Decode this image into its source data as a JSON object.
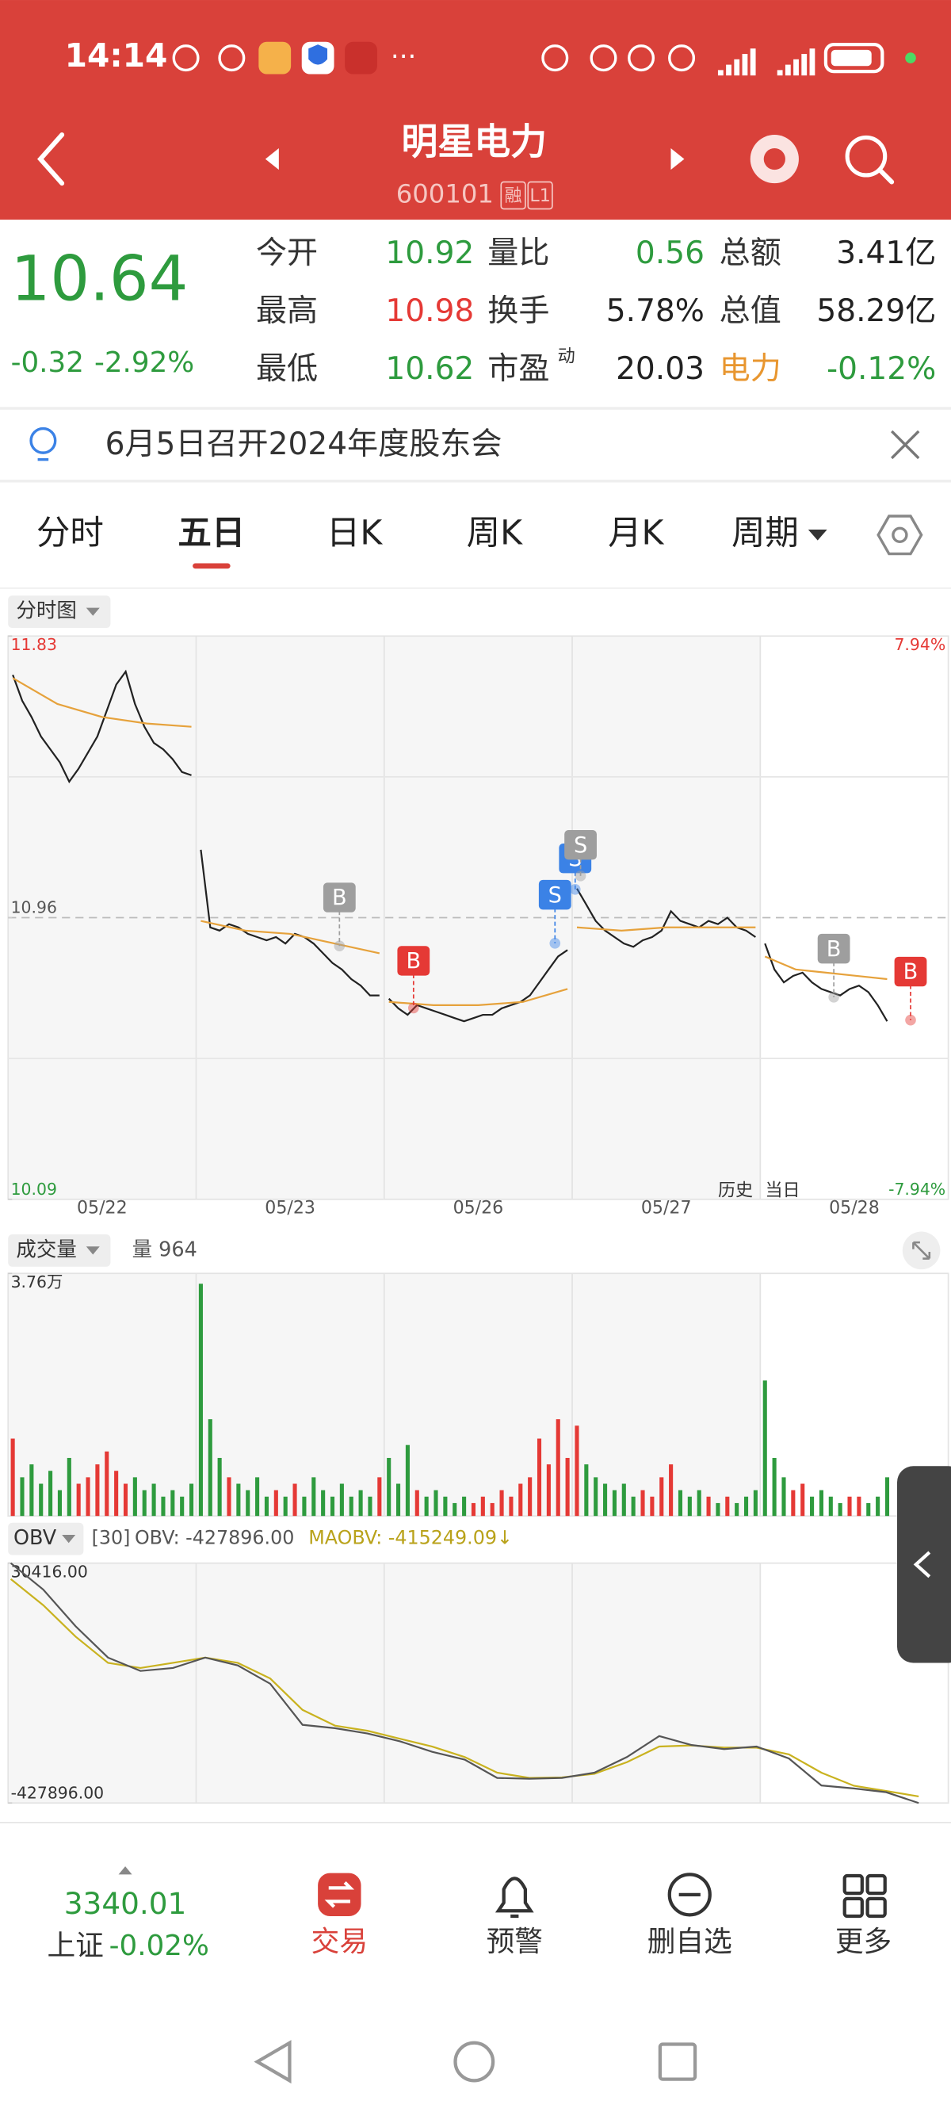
{
  "status_bar": {
    "time": "14:14",
    "more": "···"
  },
  "header": {
    "title": "明星电力",
    "code": "600101",
    "badges": [
      "融",
      "L1"
    ]
  },
  "quote": {
    "price": "10.64",
    "change": "-0.32",
    "change_pct": "-2.92%",
    "rows": [
      [
        {
          "label": "今开",
          "value": "10.92",
          "color": "#2e9b3e"
        },
        {
          "label": "量比",
          "value": "0.56",
          "color": "#2e9b3e"
        },
        {
          "label": "总额",
          "value": "3.41亿",
          "color": "#222222"
        }
      ],
      [
        {
          "label": "最高",
          "value": "10.98",
          "color": "#e53935"
        },
        {
          "label": "换手",
          "value": "5.78%",
          "color": "#222222"
        },
        {
          "label": "总值",
          "value": "58.29亿",
          "color": "#222222"
        }
      ],
      [
        {
          "label": "最低",
          "value": "10.62",
          "color": "#2e9b3e"
        },
        {
          "label": "市盈",
          "sup": "动",
          "value": "20.03",
          "color": "#222222"
        },
        {
          "label": "电力",
          "label_color": "#e8962f",
          "value": "-0.12%",
          "color": "#2e9b3e"
        }
      ]
    ]
  },
  "notice": "6月5日召开2024年度股东会",
  "tabs": [
    "分时",
    "五日",
    "日K",
    "周K",
    "月K",
    "周期"
  ],
  "active_tab": 1,
  "chart_data": {
    "type": "intraday",
    "label": "分时图",
    "categories": [
      "05/22",
      "05/23",
      "05/26",
      "05/27",
      "05/28"
    ],
    "history_label": "历史",
    "today_label": "当日",
    "ylim": [
      10.09,
      11.83
    ],
    "yticks": [
      11.83,
      10.96,
      10.09
    ],
    "prev_close": 10.96,
    "pct_labels": [
      "7.94%",
      "-7.94%"
    ],
    "price_color": "#222222",
    "avg_color": "#e6a23c",
    "up_color": "#e53935",
    "down_color": "#2e9b3e",
    "price": [
      [
        11.71,
        11.63,
        11.58,
        11.52,
        11.48,
        11.44,
        11.38,
        11.42,
        11.47,
        11.52,
        11.6,
        11.68,
        11.72,
        11.62,
        11.55,
        11.5,
        11.48,
        11.45,
        11.41,
        11.4
      ],
      [
        11.17,
        10.93,
        10.92,
        10.94,
        10.93,
        10.91,
        10.9,
        10.89,
        10.9,
        10.88,
        10.91,
        10.9,
        10.88,
        10.85,
        10.82,
        10.8,
        10.77,
        10.75,
        10.72,
        10.72
      ],
      [
        10.71,
        10.68,
        10.66,
        10.69,
        10.68,
        10.67,
        10.66,
        10.65,
        10.64,
        10.65,
        10.66,
        10.66,
        10.68,
        10.69,
        10.7,
        10.72,
        10.76,
        10.8,
        10.84,
        10.86
      ],
      [
        11.05,
        11.0,
        10.95,
        10.92,
        10.9,
        10.88,
        10.87,
        10.89,
        10.9,
        10.92,
        10.98,
        10.95,
        10.94,
        10.93,
        10.95,
        10.94,
        10.96,
        10.93,
        10.92,
        10.9
      ],
      [
        10.88,
        10.8,
        10.76,
        10.78,
        10.79,
        10.76,
        10.74,
        10.73,
        10.72,
        10.74,
        10.75,
        10.73,
        10.69,
        10.64
      ]
    ],
    "avg": [
      [
        11.7,
        11.62,
        11.58,
        11.56,
        11.55
      ],
      [
        10.95,
        10.92,
        10.91,
        10.88,
        10.85
      ],
      [
        10.7,
        10.69,
        10.69,
        10.7,
        10.74
      ],
      [
        10.93,
        10.92,
        10.93,
        10.93,
        10.93
      ],
      [
        10.84,
        10.8,
        10.79,
        10.78,
        10.77
      ]
    ],
    "trade_marks": [
      {
        "label": "B",
        "color": "#9e9e9e"
      },
      {
        "label": "B",
        "color": "#e53935"
      },
      {
        "label": "S",
        "color": "#3b82e6"
      },
      {
        "label": "S",
        "color": "#3b82e6"
      },
      {
        "label": "S",
        "color": "#9e9e9e"
      },
      {
        "label": "B",
        "color": "#9e9e9e"
      },
      {
        "label": "B",
        "color": "#e53935"
      }
    ]
  },
  "volume_chart": {
    "type": "bar",
    "label": "成交量",
    "current": "量 964",
    "ylim": [
      0,
      3.76
    ],
    "yticks": [
      {
        "value": 3.76,
        "label": "3.76万"
      }
    ],
    "values": [
      [
        1.2,
        0.6,
        0.8,
        0.5,
        0.7,
        0.4,
        0.9,
        0.5,
        0.6,
        0.8,
        1.0,
        0.7,
        0.5,
        0.6,
        0.4,
        0.5,
        0.3,
        0.4,
        0.3,
        0.5
      ],
      [
        3.6,
        1.5,
        0.9,
        0.6,
        0.5,
        0.4,
        0.6,
        0.3,
        0.4,
        0.3,
        0.5,
        0.3,
        0.6,
        0.4,
        0.3,
        0.5,
        0.3,
        0.4,
        0.3,
        0.6
      ],
      [
        0.9,
        0.5,
        1.1,
        0.4,
        0.3,
        0.4,
        0.3,
        0.2,
        0.3,
        0.2,
        0.3,
        0.2,
        0.4,
        0.3,
        0.5,
        0.6,
        1.2,
        0.8,
        1.5,
        0.9
      ],
      [
        1.4,
        0.8,
        0.6,
        0.5,
        0.4,
        0.5,
        0.3,
        0.4,
        0.3,
        0.6,
        0.8,
        0.4,
        0.3,
        0.4,
        0.3,
        0.2,
        0.3,
        0.2,
        0.3,
        0.4
      ],
      [
        2.1,
        0.9,
        0.6,
        0.4,
        0.5,
        0.3,
        0.4,
        0.3,
        0.2,
        0.3,
        0.3,
        0.2,
        0.3,
        0.6
      ]
    ]
  },
  "obv_chart": {
    "type": "line",
    "indicator": "OBV",
    "period": "[30]",
    "obv_text": "OBV: -427896.00",
    "maobv_text": "MAOBV: -415249.09↓",
    "ylim": [
      -427896,
      30416
    ],
    "yticks": [
      {
        "value": 30416,
        "label": "30416.00"
      },
      {
        "value": -427896,
        "label": "-427896.00"
      }
    ],
    "series": [
      {
        "name": "OBV",
        "color": "#555555",
        "values": [
          30416,
          -20000,
          -90000,
          -150000,
          -175568,
          -170000,
          -150000,
          -165000,
          -200000,
          -278560,
          -285000,
          -295000,
          -310000,
          -330056,
          -345000,
          -380000,
          -381552,
          -380000,
          -370000,
          -340000,
          -300000,
          -317182,
          -325000,
          -320000,
          -342930,
          -394426,
          -400000,
          -407300,
          -427896
        ]
      },
      {
        "name": "MAOBV",
        "color": "#c9b21f",
        "values": [
          0,
          -50000,
          -110000,
          -160000,
          -170000,
          -160000,
          -150000,
          -160000,
          -190000,
          -250000,
          -280000,
          -290000,
          -305000,
          -320000,
          -340000,
          -370000,
          -380000,
          -379000,
          -372000,
          -350000,
          -320000,
          -318000,
          -322000,
          -322000,
          -335000,
          -370000,
          -395000,
          -405000,
          -415249
        ]
      }
    ]
  },
  "bottom_bar": {
    "index_value": "3340.01",
    "index_name": "上证",
    "index_change": "-0.02%",
    "buttons": [
      "交易",
      "预警",
      "删自选",
      "更多"
    ]
  }
}
